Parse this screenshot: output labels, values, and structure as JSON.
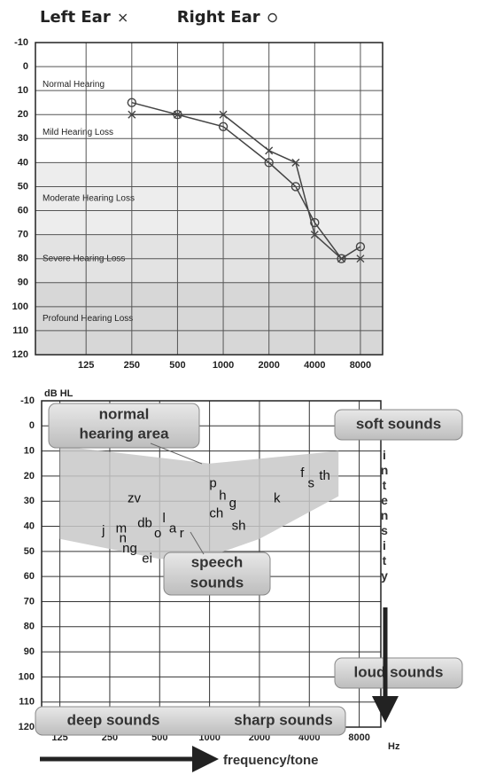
{
  "chart_data": [
    {
      "type": "line",
      "log_x": true,
      "x": [
        250,
        500,
        1000,
        2000,
        3000,
        4000,
        6000,
        8000
      ],
      "series": [
        {
          "name": "Left Ear",
          "marker": "x",
          "color": "#444",
          "values": [
            20,
            20,
            20,
            35,
            40,
            70,
            80,
            80
          ]
        },
        {
          "name": "Right Ear",
          "marker": "o",
          "color": "#444",
          "values": [
            15,
            20,
            25,
            40,
            50,
            65,
            80,
            75
          ]
        }
      ],
      "bands": [
        {
          "label": "Normal Hearing",
          "range": [
            0,
            15
          ],
          "color": "#ffffff"
        },
        {
          "label": "Mild Hearing Loss",
          "range": [
            15,
            40
          ],
          "color": "#ffffff"
        },
        {
          "label": "Moderate Hearing Loss",
          "range": [
            40,
            70
          ],
          "color": "#ededed"
        },
        {
          "label": "Severe Hearing Loss",
          "range": [
            70,
            90
          ],
          "color": "#e3e3e3"
        },
        {
          "label": "Profound Hearing Loss",
          "range": [
            90,
            120
          ],
          "color": "#d7d7d7"
        }
      ],
      "xlim": [
        58,
        11200
      ],
      "ylim": [
        -10,
        120
      ],
      "y_inverted": true,
      "grid": true,
      "xticks": [
        125,
        250,
        500,
        1000,
        2000,
        4000,
        8000
      ],
      "yticks": [
        -10,
        0,
        10,
        20,
        30,
        40,
        50,
        60,
        70,
        80,
        90,
        100,
        110,
        120
      ]
    },
    {
      "type": "scatter",
      "log_x": true,
      "y_label": "dB HL",
      "x_unit": "Hz",
      "xlim": [
        97,
        10800
      ],
      "ylim": [
        -10,
        120
      ],
      "y_inverted": true,
      "grid": true,
      "xticks": [
        125,
        250,
        500,
        1000,
        2000,
        4000,
        8000
      ],
      "yticks": [
        -10,
        0,
        10,
        20,
        30,
        40,
        50,
        60,
        70,
        80,
        90,
        100,
        110,
        120
      ],
      "area": {
        "color": "#c8c8c8",
        "x": [
          125,
          1000,
          6000,
          6000,
          2000,
          1000,
          500,
          125
        ],
        "y": [
          8,
          15,
          10,
          28,
          45,
          52,
          53,
          45
        ]
      },
      "points": [
        {
          "label": "zv",
          "x": 351,
          "y": 29
        },
        {
          "label": "j",
          "x": 229,
          "y": 42
        },
        {
          "label": "m",
          "x": 293,
          "y": 41
        },
        {
          "label": "db",
          "x": 407,
          "y": 39
        },
        {
          "label": "n",
          "x": 300,
          "y": 45
        },
        {
          "label": "o",
          "x": 487,
          "y": 43
        },
        {
          "label": "l",
          "x": 531,
          "y": 37
        },
        {
          "label": "a",
          "x": 600,
          "y": 41
        },
        {
          "label": "r",
          "x": 680,
          "y": 43
        },
        {
          "label": "ng",
          "x": 330,
          "y": 49
        },
        {
          "label": "ei",
          "x": 420,
          "y": 53
        },
        {
          "label": "p",
          "x": 1050,
          "y": 23
        },
        {
          "label": "h",
          "x": 1200,
          "y": 28
        },
        {
          "label": "g",
          "x": 1380,
          "y": 31
        },
        {
          "label": "ch",
          "x": 1100,
          "y": 35
        },
        {
          "label": "sh",
          "x": 1500,
          "y": 40
        },
        {
          "label": "k",
          "x": 2550,
          "y": 29
        },
        {
          "label": "f",
          "x": 3630,
          "y": 19
        },
        {
          "label": "s",
          "x": 4100,
          "y": 23
        },
        {
          "label": "th",
          "x": 4950,
          "y": 20
        }
      ],
      "labels": {
        "normal_area": [
          "normal",
          "hearing area"
        ],
        "speech": [
          "speech",
          "sounds"
        ],
        "soft": "soft sounds",
        "loud": "loud sounds",
        "deep": "deep sounds",
        "sharp": "sharp sounds",
        "intensity": "intensity",
        "frequency": "frequency/tone"
      }
    }
  ]
}
